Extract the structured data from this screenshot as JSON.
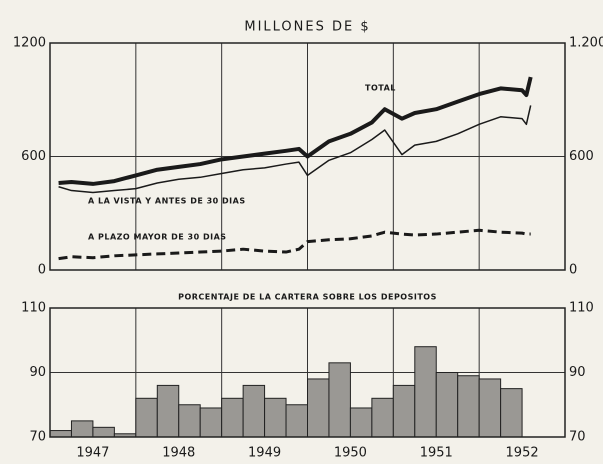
{
  "chart_data": [
    {
      "type": "line",
      "title": "MILLONES DE $",
      "x": [
        1946.6,
        1946.75,
        1947.0,
        1947.25,
        1947.5,
        1947.75,
        1948.0,
        1948.25,
        1948.5,
        1948.75,
        1949.0,
        1949.25,
        1949.4,
        1949.5,
        1949.75,
        1950.0,
        1950.25,
        1950.4,
        1950.6,
        1950.75,
        1951.0,
        1951.25,
        1951.5,
        1951.75,
        1952.0,
        1952.05,
        1952.1
      ],
      "series": [
        {
          "name": "TOTAL",
          "color": "#1a1a1a",
          "style": "thick",
          "values": [
            460,
            465,
            455,
            470,
            500,
            530,
            545,
            560,
            585,
            600,
            615,
            630,
            640,
            600,
            680,
            720,
            780,
            850,
            800,
            830,
            850,
            890,
            930,
            960,
            950,
            925,
            1020
          ]
        },
        {
          "name": "A LA VISTA Y ANTES DE 30 DIAS",
          "color": "#1a1a1a",
          "style": "thin",
          "values": [
            440,
            420,
            410,
            420,
            430,
            460,
            480,
            490,
            510,
            530,
            540,
            560,
            570,
            500,
            580,
            620,
            690,
            740,
            610,
            660,
            680,
            720,
            770,
            810,
            800,
            770,
            870
          ]
        },
        {
          "name": "A PLAZO MAYOR DE 30 DIAS",
          "color": "#1a1a1a",
          "style": "dashed",
          "values": [
            60,
            70,
            65,
            75,
            80,
            85,
            90,
            95,
            100,
            110,
            100,
            95,
            110,
            150,
            160,
            165,
            180,
            200,
            190,
            185,
            190,
            200,
            210,
            200,
            195,
            190,
            190
          ]
        }
      ],
      "xlim": [
        1946.5,
        1952.5
      ],
      "xgrid": [
        1947.5,
        1948.5,
        1949.5,
        1950.5,
        1951.5
      ],
      "ylim": [
        0,
        1200
      ],
      "yticks": [
        0,
        600,
        1200
      ],
      "y2lim": [
        0,
        1200
      ],
      "y2ticks": [
        0,
        600,
        {
          "value": 1200,
          "label": "1.200"
        }
      ],
      "grid": true
    },
    {
      "type": "step",
      "title": "PORCENTAJE DE LA CARTERA SOBRE LOS DEPOSITOS",
      "x": [
        1946.5,
        1946.75,
        1947.0,
        1947.25,
        1947.5,
        1947.75,
        1948.0,
        1948.25,
        1948.5,
        1948.75,
        1949.0,
        1949.25,
        1949.5,
        1949.75,
        1950.0,
        1950.25,
        1950.5,
        1950.75,
        1951.0,
        1951.25,
        1951.5,
        1951.75
      ],
      "values": [
        72,
        75,
        73,
        71,
        82,
        86,
        80,
        79,
        82,
        86,
        82,
        80,
        88,
        93,
        79,
        82,
        86,
        98,
        90,
        89,
        88,
        85
      ],
      "color": "#9a9894",
      "xlim": [
        1946.5,
        1952.5
      ],
      "xgrid": [
        1947.5,
        1948.5,
        1949.5,
        1950.5,
        1951.5
      ],
      "xticks": [
        {
          "value": 1947,
          "label": "1947"
        },
        {
          "value": 1948,
          "label": "1948"
        },
        {
          "value": 1949,
          "label": "1949"
        },
        {
          "value": 1950,
          "label": "1950"
        },
        {
          "value": 1951,
          "label": "1951"
        },
        {
          "value": 1952,
          "label": "1952"
        }
      ],
      "ylim": [
        70,
        110
      ],
      "yticks": [
        70,
        90,
        110
      ],
      "y2lim": [
        70,
        110
      ],
      "y2ticks": [
        70,
        90,
        110
      ],
      "grid": true
    }
  ]
}
